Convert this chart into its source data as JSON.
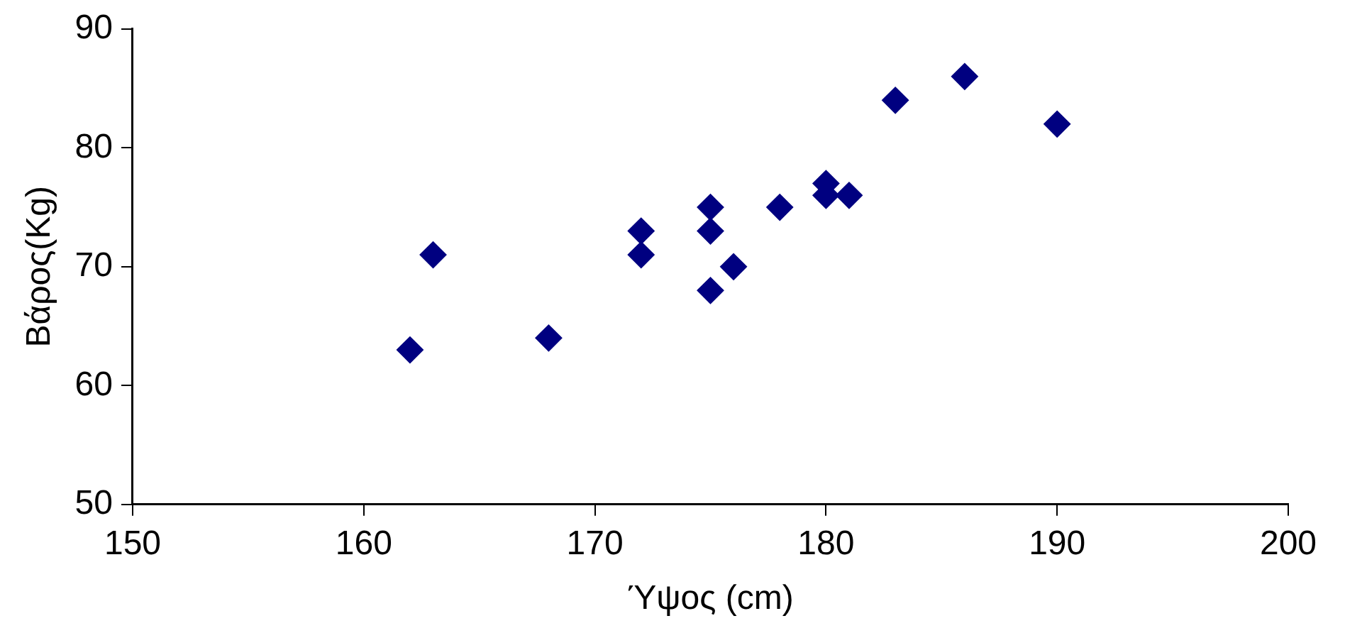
{
  "chart_data": {
    "type": "scatter",
    "xlabel": "Ύψος (cm)",
    "ylabel": "Βάρος(Kg)",
    "x": [
      162,
      163,
      168,
      172,
      172,
      175,
      175,
      175,
      176,
      178,
      180,
      180,
      181,
      183,
      186,
      190
    ],
    "series": [
      {
        "color": "#000080",
        "values": [
          63,
          71,
          64,
          73,
          71,
          75,
          73,
          68,
          70,
          75,
          77,
          76,
          76,
          84,
          86,
          82
        ]
      }
    ],
    "xlim": [
      150,
      200
    ],
    "xticks": [
      150,
      160,
      170,
      180,
      190,
      200
    ],
    "ylim": [
      50,
      90
    ],
    "yticks": [
      50,
      60,
      70,
      80,
      90
    ],
    "grid": false,
    "legend": false,
    "marker": "diamond"
  }
}
